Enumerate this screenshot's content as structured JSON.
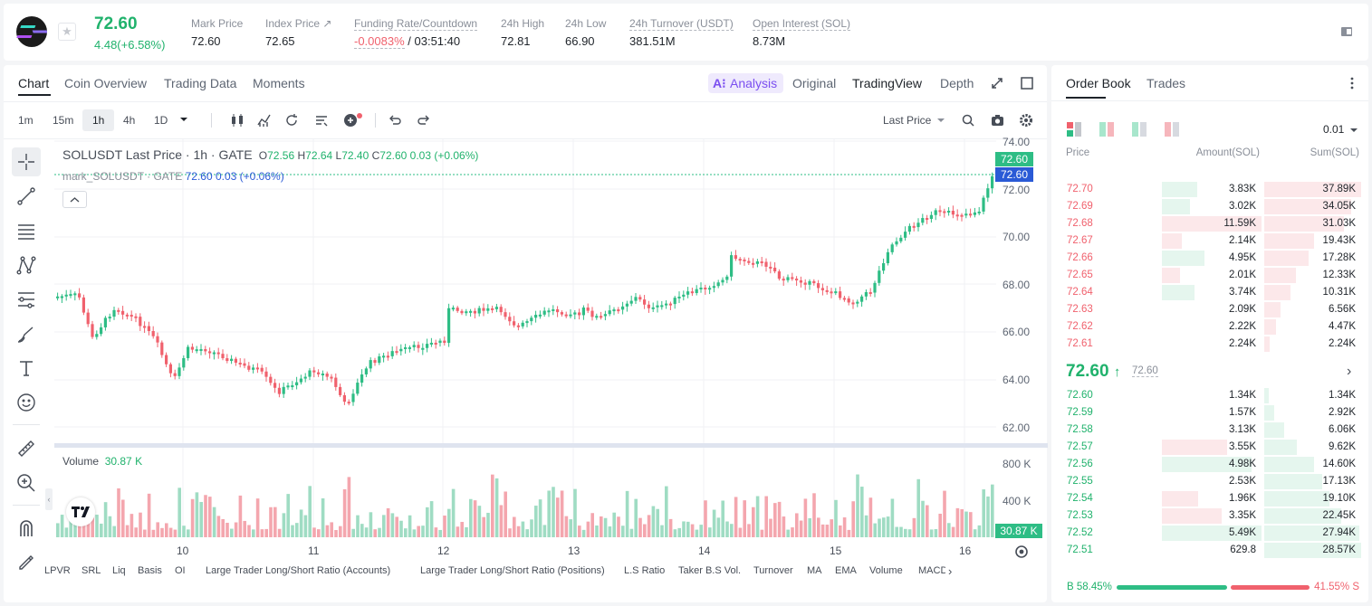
{
  "header": {
    "price": "72.60",
    "change": "4.48(+6.58%)",
    "stats": [
      {
        "label": "Mark Price",
        "value": "72.60"
      },
      {
        "label": "Index Price ↗",
        "value": "72.65"
      },
      {
        "label": "Funding Rate/Countdown",
        "value_neg": "-0.0083%",
        "value": "/ 03:51:40"
      },
      {
        "label": "24h High",
        "value": "72.81"
      },
      {
        "label": "24h Low",
        "value": "66.90"
      },
      {
        "label": "24h Turnover (USDT)",
        "value": "381.51M"
      },
      {
        "label": "Open Interest (SOL)",
        "value": "8.73M"
      }
    ]
  },
  "tabs": {
    "chart": "Chart",
    "overview": "Coin Overview",
    "trading_data": "Trading Data",
    "moments": "Moments"
  },
  "views": {
    "analysis": "Analysis",
    "ai_prefix": "A⁝",
    "original": "Original",
    "tradingview": "TradingView",
    "depth": "Depth"
  },
  "toolbar": {
    "intervals": [
      "1m",
      "15m",
      "1h",
      "4h",
      "1D"
    ],
    "last_price": "Last Price"
  },
  "legend": {
    "title": "SOLUSDT Last Price · 1h · GATE",
    "o_label": "O",
    "o": "72.56",
    "h_label": "H",
    "h": "72.64",
    "l_label": "L",
    "l": "72.40",
    "c_label": "C",
    "c": "72.60",
    "chg": "0.03 (+0.06%)",
    "mark_name": "mark_SOLUSDT · GATE",
    "mark_price": "72.60",
    "mark_chg": "0.03 (+0.06%)",
    "volume_label": "Volume",
    "volume_value": "30.87 K"
  },
  "price_axis": [
    "74.00",
    "72.00",
    "70.00",
    "68.00",
    "66.00",
    "64.00",
    "62.00"
  ],
  "price_badges": {
    "last": "72.60",
    "mark": "72.60",
    "volume": "30.87 K"
  },
  "volume_axis": [
    "800 K",
    "400 K"
  ],
  "x_axis": [
    "10",
    "11",
    "12",
    "13",
    "14",
    "15",
    "16"
  ],
  "indicators": [
    "LPVR",
    "SRL",
    "Liq",
    "Basis",
    "OI",
    "Large Trader Long/Short Ratio (Accounts)",
    "Large Trader Long/Short Ratio (Positions)",
    "L.S Ratio",
    "Taker B.S Vol.",
    "Turnover",
    "MA",
    "EMA",
    "Volume",
    "MACD"
  ],
  "orderbook": {
    "tab_book": "Order Book",
    "tab_trades": "Trades",
    "precision": "0.01",
    "col_price": "Price",
    "col_amount": "Amount(SOL)",
    "col_sum": "Sum(SOL)",
    "asks": [
      {
        "price": "72.70",
        "amount": "3.83K",
        "sum": "37.89K",
        "amt_frac": 0.35,
        "sum_frac": 1.0,
        "amt_green": true
      },
      {
        "price": "72.69",
        "amount": "3.02K",
        "sum": "34.05K",
        "amt_frac": 0.28,
        "sum_frac": 0.9,
        "amt_green": true
      },
      {
        "price": "72.68",
        "amount": "11.59K",
        "sum": "31.03K",
        "amt_frac": 1.0,
        "sum_frac": 0.82,
        "amt_green": false
      },
      {
        "price": "72.67",
        "amount": "2.14K",
        "sum": "19.43K",
        "amt_frac": 0.2,
        "sum_frac": 0.51,
        "amt_green": false
      },
      {
        "price": "72.66",
        "amount": "4.95K",
        "sum": "17.28K",
        "amt_frac": 0.43,
        "sum_frac": 0.46,
        "amt_green": true
      },
      {
        "price": "72.65",
        "amount": "2.01K",
        "sum": "12.33K",
        "amt_frac": 0.18,
        "sum_frac": 0.33,
        "amt_green": false
      },
      {
        "price": "72.64",
        "amount": "3.74K",
        "sum": "10.31K",
        "amt_frac": 0.33,
        "sum_frac": 0.27,
        "amt_green": true
      },
      {
        "price": "72.63",
        "amount": "2.09K",
        "sum": "6.56K",
        "amt_frac": 0.0,
        "sum_frac": 0.17,
        "amt_green": false
      },
      {
        "price": "72.62",
        "amount": "2.22K",
        "sum": "4.47K",
        "amt_frac": 0.0,
        "sum_frac": 0.12,
        "amt_green": false
      },
      {
        "price": "72.61",
        "amount": "2.24K",
        "sum": "2.24K",
        "amt_frac": 0.0,
        "sum_frac": 0.06,
        "amt_green": false
      }
    ],
    "mid_price": "72.60",
    "mid_arrow": "↑",
    "mid_mark": "72.60",
    "bids": [
      {
        "price": "72.60",
        "amount": "1.34K",
        "sum": "1.34K",
        "amt_frac": 0.0,
        "sum_frac": 0.05,
        "amt_red": false
      },
      {
        "price": "72.59",
        "amount": "1.57K",
        "sum": "2.92K",
        "amt_frac": 0.0,
        "sum_frac": 0.1,
        "amt_red": false
      },
      {
        "price": "72.58",
        "amount": "3.13K",
        "sum": "6.06K",
        "amt_frac": 0.0,
        "sum_frac": 0.21,
        "amt_red": false
      },
      {
        "price": "72.57",
        "amount": "3.55K",
        "sum": "9.62K",
        "amt_frac": 0.65,
        "sum_frac": 0.34,
        "amt_red": true
      },
      {
        "price": "72.56",
        "amount": "4.98K",
        "sum": "14.60K",
        "amt_frac": 0.9,
        "sum_frac": 0.51,
        "amt_red": false
      },
      {
        "price": "72.55",
        "amount": "2.53K",
        "sum": "17.13K",
        "amt_frac": 0.0,
        "sum_frac": 0.6,
        "amt_red": false
      },
      {
        "price": "72.54",
        "amount": "1.96K",
        "sum": "19.10K",
        "amt_frac": 0.36,
        "sum_frac": 0.67,
        "amt_red": true
      },
      {
        "price": "72.53",
        "amount": "3.35K",
        "sum": "22.45K",
        "amt_frac": 0.6,
        "sum_frac": 0.79,
        "amt_red": true
      },
      {
        "price": "72.52",
        "amount": "5.49K",
        "sum": "27.94K",
        "amt_frac": 1.0,
        "sum_frac": 0.98,
        "amt_red": false
      },
      {
        "price": "72.51",
        "amount": "629.8",
        "sum": "28.57K",
        "amt_frac": 0.0,
        "sum_frac": 1.0,
        "amt_red": false
      }
    ],
    "buy_label": "B",
    "buy_pct": "58.45%",
    "sell_pct": "41.55%",
    "sell_label": "S",
    "buy_frac": 0.5845
  },
  "colors": {
    "up": "#2ebd85",
    "down": "#f0616d",
    "accent": "#20b26c",
    "mark": "#2a5ad6"
  },
  "icons": [
    "sol-logo-icon",
    "star-icon",
    "copy-icon",
    "candles-icon",
    "indicator-icon",
    "replay-icon",
    "template-icon",
    "add-alert-icon",
    "undo-icon",
    "redo-icon",
    "search-icon",
    "camera-icon",
    "settings-icon",
    "crosshair-icon",
    "trendline-icon",
    "fib-icon",
    "pattern-icon",
    "projection-icon",
    "brush-icon",
    "text-icon",
    "emoji-icon",
    "ruler-icon",
    "zoom-in-icon",
    "magnet-icon",
    "erase-icon",
    "fullscreen-icon",
    "window-icon",
    "more-icon",
    "chevron-right-icon",
    "tradingview-logo-icon"
  ]
}
